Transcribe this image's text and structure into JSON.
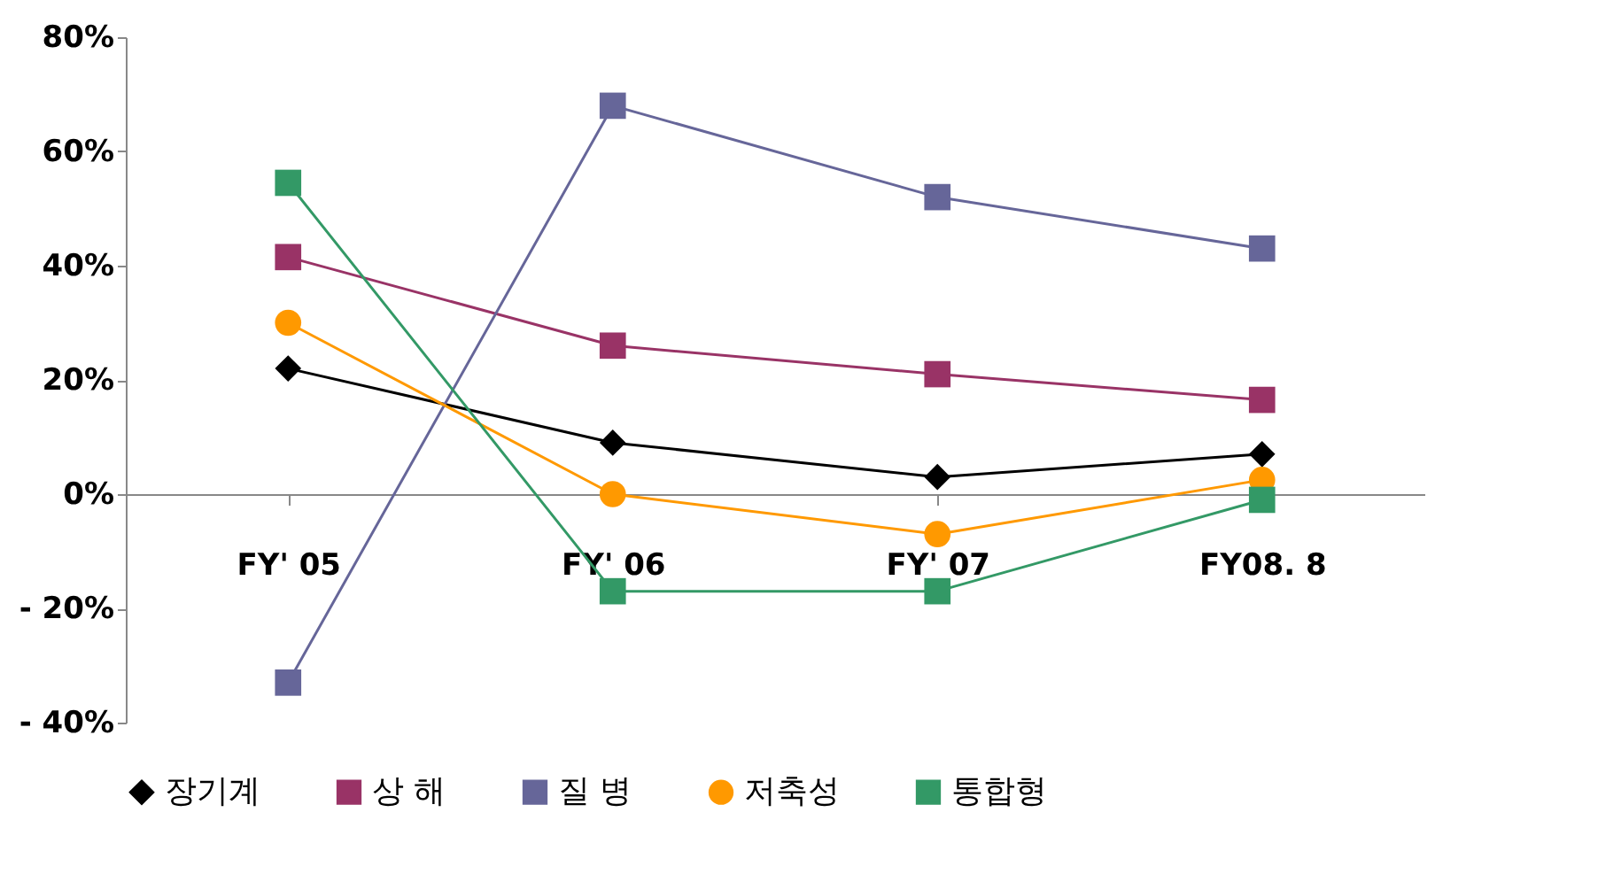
{
  "chart_data": {
    "type": "line",
    "categories": [
      "FY' 05",
      "FY' 06",
      "FY' 07",
      "FY08. 8"
    ],
    "series": [
      {
        "name": "장기계",
        "color": "#000000",
        "marker": "diamond",
        "values": [
          22,
          9,
          3,
          7
        ]
      },
      {
        "name": "상 해",
        "color": "#993366",
        "marker": "square",
        "values": [
          41.5,
          26,
          21,
          16.5
        ]
      },
      {
        "name": "질 병",
        "color": "#666699",
        "marker": "square",
        "values": [
          -33,
          68,
          52,
          43
        ]
      },
      {
        "name": "저축성",
        "color": "#ff9900",
        "marker": "circle",
        "values": [
          30,
          0,
          -7,
          2.5
        ]
      },
      {
        "name": "통합형",
        "color": "#339966",
        "marker": "square",
        "values": [
          54.5,
          -17,
          -17,
          -1
        ]
      }
    ],
    "ylim": [
      -40,
      80
    ],
    "yticks": [
      {
        "value": -40,
        "label": "- 40%"
      },
      {
        "value": -20,
        "label": "- 20%"
      },
      {
        "value": 0,
        "label": "0%"
      },
      {
        "value": 20,
        "label": "20%"
      },
      {
        "value": 40,
        "label": "40%"
      },
      {
        "value": 60,
        "label": "60%"
      },
      {
        "value": 80,
        "label": "80%"
      }
    ],
    "grid": false,
    "legend": "bottom",
    "line_style": "solid"
  }
}
